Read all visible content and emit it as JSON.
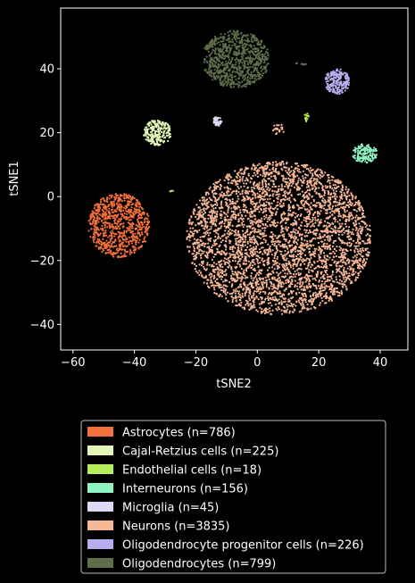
{
  "chart_data": {
    "type": "scatter",
    "xlabel": "tSNE2",
    "ylabel": "tSNE1",
    "xlim": [
      -64,
      49
    ],
    "ylim": [
      -48,
      59
    ],
    "x_ticks": [
      -60,
      -40,
      -20,
      0,
      20,
      40
    ],
    "y_ticks": [
      -40,
      -20,
      0,
      20,
      40
    ],
    "x_tick_labels": [
      "−60",
      "−40",
      "−20",
      "0",
      "20",
      "40"
    ],
    "y_tick_labels": [
      "−40",
      "−20",
      "0",
      "20",
      "40"
    ],
    "grid": false,
    "legend_placement": "below plot",
    "background": "#000000",
    "series": [
      {
        "name": "Astrocytes (n=786)",
        "color": "#f4703a",
        "count": 786,
        "clusters": [
          {
            "cx": -45,
            "cy": -9,
            "rx": 10,
            "ry": 10,
            "shape": "disc"
          }
        ]
      },
      {
        "name": "Cajal-Retzius cells (n=225)",
        "color": "#e2f7b8",
        "count": 225,
        "clusters": [
          {
            "cx": -32.5,
            "cy": 20,
            "rx": 4.5,
            "ry": 4,
            "shape": "disc"
          }
        ]
      },
      {
        "name": "Endothelial cells (n=18)",
        "color": "#b6ed5a",
        "count": 18,
        "clusters": [
          {
            "cx": 16,
            "cy": 25,
            "rx": 0.8,
            "ry": 1.5,
            "shape": "disc"
          },
          {
            "cx": -28,
            "cy": 2,
            "rx": 0.6,
            "ry": 0.6,
            "shape": "disc"
          }
        ]
      },
      {
        "name": "Interneurons (n=156)",
        "color": "#8ff5c2",
        "count": 156,
        "clusters": [
          {
            "cx": 35,
            "cy": 13.5,
            "rx": 4,
            "ry": 3,
            "shape": "disc"
          }
        ]
      },
      {
        "name": "Microglia (n=45)",
        "color": "#ded9f5",
        "count": 45,
        "clusters": [
          {
            "cx": -13,
            "cy": 23.5,
            "rx": 1.5,
            "ry": 1.5,
            "shape": "disc"
          }
        ]
      },
      {
        "name": "Neurons (n=3835)",
        "color": "#f6b896",
        "count": 3835,
        "clusters": [
          {
            "cx": 7,
            "cy": -13,
            "rx": 30,
            "ry": 24,
            "shape": "disc"
          },
          {
            "cx": 7,
            "cy": 21,
            "rx": 2,
            "ry": 2,
            "shape": "disc"
          }
        ]
      },
      {
        "name": "Oligodendrocyte progenitor cells (n=226)",
        "color": "#b9adf0",
        "count": 226,
        "clusters": [
          {
            "cx": 26,
            "cy": 36,
            "rx": 4,
            "ry": 4,
            "shape": "disc"
          }
        ]
      },
      {
        "name": "Oligodendrocytes (n=799)",
        "color": "#606e4a",
        "count": 799,
        "clusters": [
          {
            "cx": -7,
            "cy": 43,
            "rx": 11,
            "ry": 9,
            "shape": "disc"
          },
          {
            "cx": 14,
            "cy": 41.5,
            "rx": 2,
            "ry": 0.5,
            "shape": "disc"
          }
        ]
      }
    ]
  }
}
